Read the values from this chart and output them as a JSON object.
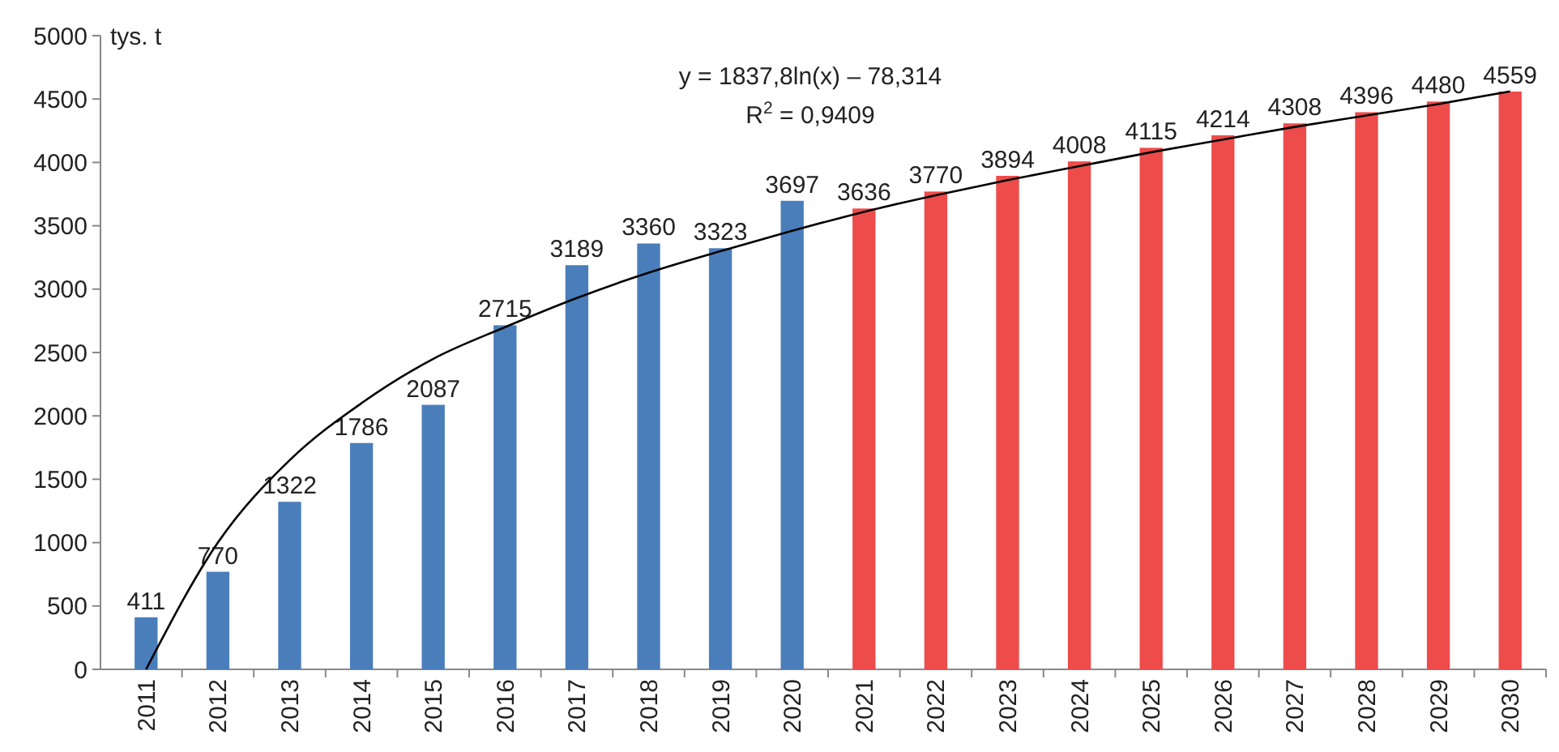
{
  "chart_data": {
    "type": "bar",
    "ylabel": "tys. t",
    "categories": [
      "2011",
      "2012",
      "2013",
      "2014",
      "2015",
      "2016",
      "2017",
      "2018",
      "2019",
      "2020",
      "2021",
      "2022",
      "2023",
      "2024",
      "2025",
      "2026",
      "2027",
      "2028",
      "2029",
      "2030"
    ],
    "series": [
      {
        "values": [
          411,
          770,
          1322,
          1786,
          2087,
          2715,
          3189,
          3360,
          3323,
          3697,
          3636,
          3770,
          3894,
          4008,
          4115,
          4214,
          4308,
          4396,
          4480,
          4559
        ],
        "value_labels": [
          "411",
          "770",
          "1322",
          "1786",
          "2087",
          "2715",
          "3189",
          "3360",
          "3323",
          "3697",
          "3636",
          "3770",
          "3894",
          "4008",
          "4115",
          "4214",
          "4308",
          "4396",
          "4480",
          "4559"
        ],
        "colors": [
          "#4a7ebb",
          "#4a7ebb",
          "#4a7ebb",
          "#4a7ebb",
          "#4a7ebb",
          "#4a7ebb",
          "#4a7ebb",
          "#4a7ebb",
          "#4a7ebb",
          "#4a7ebb",
          "#ee4b4b",
          "#ee4b4b",
          "#ee4b4b",
          "#ee4b4b",
          "#ee4b4b",
          "#ee4b4b",
          "#ee4b4b",
          "#ee4b4b",
          "#ee4b4b",
          "#ee4b4b"
        ]
      },
      {
        "type": "line",
        "color": "#000000",
        "values": [
          0,
          1000,
          1650,
          2100,
          2450,
          2700,
          2930,
          3130,
          3300,
          3460,
          3610,
          3740,
          3860,
          3970,
          4080,
          4180,
          4280,
          4370,
          4460,
          4560
        ]
      }
    ],
    "ylim": [
      0,
      5000
    ],
    "yticks": [
      0,
      500,
      1000,
      1500,
      2000,
      2500,
      3000,
      3500,
      4000,
      4500,
      5000
    ],
    "grid": false,
    "annotations": [
      "y = 1837,8ln(x) – 78,314",
      "R$^{2}$ = 0,9409"
    ]
  }
}
